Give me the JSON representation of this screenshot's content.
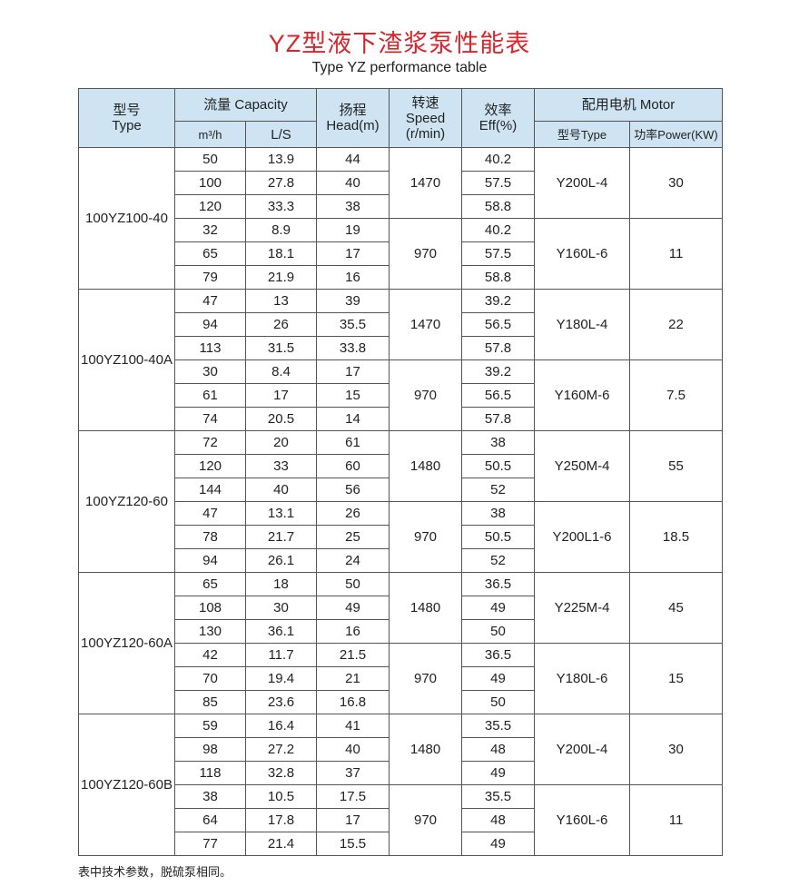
{
  "header": {
    "title": "YZ型液下渣浆泵性能表",
    "subtitle": "Type YZ performance table"
  },
  "columns": {
    "type": [
      "型号",
      "Type"
    ],
    "capacity": "流量 Capacity",
    "m3h": "m³/h",
    "ls": "L/S",
    "head": [
      "扬程",
      "Head(m)"
    ],
    "speed": [
      "转速",
      "Speed",
      "(r/min)"
    ],
    "eff": [
      "效率",
      "Eff(%)"
    ],
    "motor": "配用电机 Motor",
    "motor_type": "型号Type",
    "power": "功率Power(KW)"
  },
  "models": [
    {
      "name": "100YZ100-40",
      "groups": [
        {
          "speed": 1470,
          "motor": "Y200L-4",
          "power": 30,
          "rows": [
            [
              50,
              13.9,
              44,
              40.2
            ],
            [
              100,
              27.8,
              40,
              57.5
            ],
            [
              120,
              33.3,
              38,
              58.8
            ]
          ]
        },
        {
          "speed": 970,
          "motor": "Y160L-6",
          "power": 11,
          "rows": [
            [
              32,
              8.9,
              19,
              40.2
            ],
            [
              65,
              18.1,
              17,
              57.5
            ],
            [
              79,
              21.9,
              16,
              58.8
            ]
          ]
        }
      ]
    },
    {
      "name": "100YZ100-40A",
      "groups": [
        {
          "speed": 1470,
          "motor": "Y180L-4",
          "power": 22,
          "rows": [
            [
              47,
              13,
              39,
              39.2
            ],
            [
              94,
              26,
              35.5,
              56.5
            ],
            [
              113,
              31.5,
              33.8,
              57.8
            ]
          ]
        },
        {
          "speed": 970,
          "motor": "Y160M-6",
          "power": 7.5,
          "rows": [
            [
              30,
              8.4,
              17,
              39.2
            ],
            [
              61,
              17,
              15,
              56.5
            ],
            [
              74,
              20.5,
              14,
              57.8
            ]
          ]
        }
      ]
    },
    {
      "name": "100YZ120-60",
      "groups": [
        {
          "speed": 1480,
          "motor": "Y250M-4",
          "power": 55,
          "rows": [
            [
              72,
              20,
              61,
              38
            ],
            [
              120,
              33,
              60,
              50.5
            ],
            [
              144,
              40,
              56,
              52
            ]
          ]
        },
        {
          "speed": 970,
          "motor": "Y200L1-6",
          "power": 18.5,
          "rows": [
            [
              47,
              13.1,
              26,
              38
            ],
            [
              78,
              21.7,
              25,
              50.5
            ],
            [
              94,
              26.1,
              24,
              52
            ]
          ]
        }
      ]
    },
    {
      "name": "100YZ120-60A",
      "groups": [
        {
          "speed": 1480,
          "motor": "Y225M-4",
          "power": 45,
          "rows": [
            [
              65,
              18,
              50,
              36.5
            ],
            [
              108,
              30,
              49,
              49
            ],
            [
              130,
              36.1,
              16,
              50
            ]
          ]
        },
        {
          "speed": 970,
          "motor": "Y180L-6",
          "power": 15,
          "rows": [
            [
              42,
              11.7,
              21.5,
              36.5
            ],
            [
              70,
              19.4,
              21,
              49
            ],
            [
              85,
              23.6,
              16.8,
              50
            ]
          ]
        }
      ]
    },
    {
      "name": "100YZ120-60B",
      "groups": [
        {
          "speed": 1480,
          "motor": "Y200L-4",
          "power": 30,
          "rows": [
            [
              59,
              16.4,
              41,
              35.5
            ],
            [
              98,
              27.2,
              40,
              48
            ],
            [
              118,
              32.8,
              37,
              49
            ]
          ]
        },
        {
          "speed": 970,
          "motor": "Y160L-6",
          "power": 11,
          "rows": [
            [
              38,
              10.5,
              17.5,
              35.5
            ],
            [
              64,
              17.8,
              17,
              48
            ],
            [
              77,
              21.4,
              15.5,
              49
            ]
          ]
        }
      ]
    }
  ],
  "footnote": "表中技术参数，脱硫泵相同。"
}
